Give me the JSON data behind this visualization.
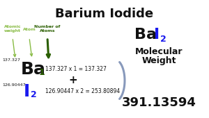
{
  "title": "Barium Iodide",
  "title_fontsize": 13,
  "bg_color": "#ffffff",
  "formula_Ba": "Ba",
  "formula_I": "I",
  "formula_subscript_I": "2",
  "mw_label1": "Molecular",
  "mw_label2": "Weight",
  "ba_symbol": "Ba",
  "ba_subscript": "1",
  "i_symbol": "I",
  "i_subscript": "2",
  "ba_atomic_weight": "137.327",
  "i_atomic_weight": "126.90447",
  "ba_calc": "137.327 x 1 = 137.327",
  "i_calc": "126.90447 x 2 = 253.80894",
  "total": "391.13594",
  "plus_sign": "+",
  "arrow_label_atomic": "Atomic\nweight",
  "arrow_label_atom": "Atom",
  "arrow_label_number": "Number of\nAtoms",
  "color_light_green": "#88bb44",
  "color_dark_green": "#2a5e00",
  "color_blue": "#1a1aee",
  "color_black": "#111111",
  "color_gray_arrow": "#8899bb"
}
